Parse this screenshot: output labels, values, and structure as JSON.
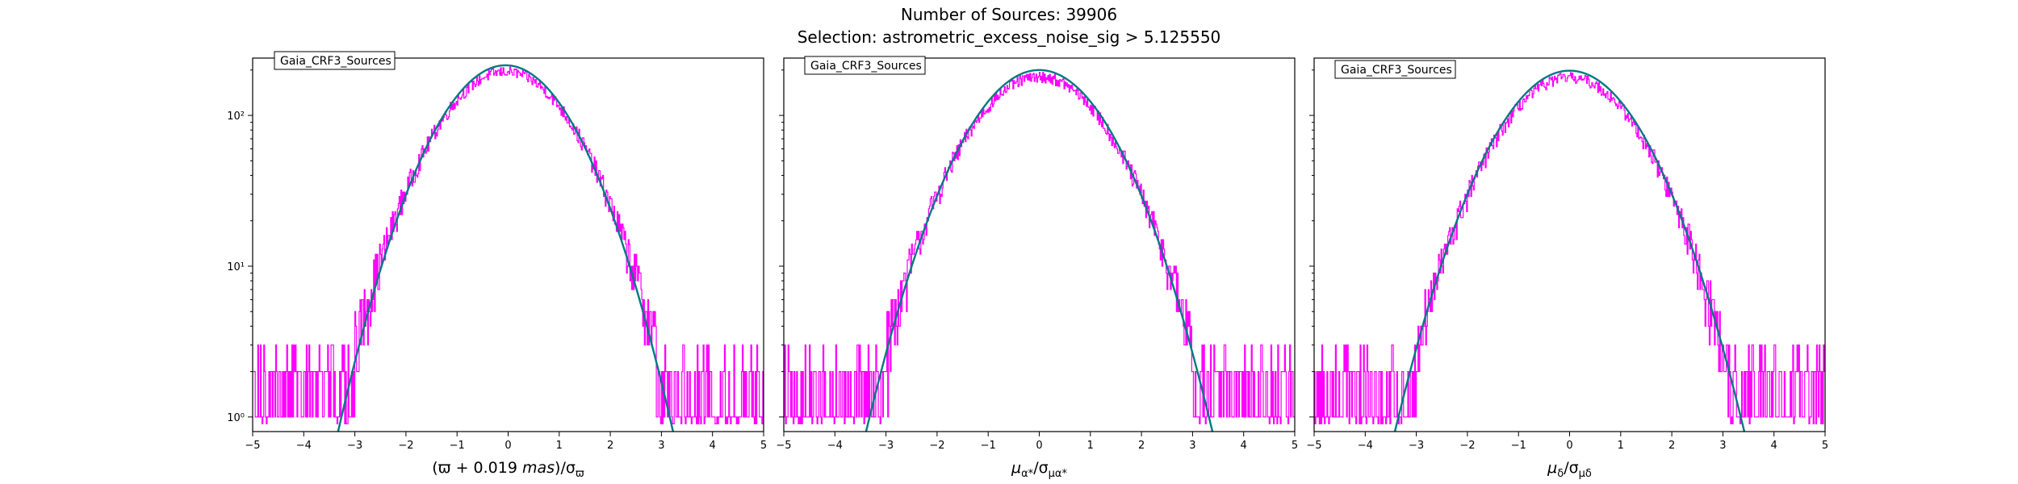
{
  "figure": {
    "title_line1": "Number of Sources: 39906",
    "title_line2": "Selection: astrometric_excess_noise_sig > 5.125550"
  },
  "colors": {
    "histogram": "#ff00ff",
    "gaussian": "#007a82",
    "axes": "#000000",
    "background": "#ffffff"
  },
  "chart_data": [
    {
      "type": "histogram",
      "panel": "parallax",
      "legend": "Gaia_CRF3_Sources",
      "xlabel": "(ϖ + 0.019 mas)/σ_ϖ",
      "xlabel_parts": [
        "(ϖ + 0.019 ",
        "mas",
        ")/σ",
        "ϖ"
      ],
      "xlim": [
        -5,
        5
      ],
      "ylim": [
        0.8,
        240
      ],
      "yscale": "log",
      "xticks": [
        -5,
        -4,
        -3,
        -2,
        -1,
        0,
        1,
        2,
        3,
        4,
        5
      ],
      "yticks": [
        {
          "value": 1,
          "label": "10⁰"
        },
        {
          "value": 10,
          "label": "10¹"
        },
        {
          "value": 100,
          "label": "10²"
        }
      ],
      "hist_peak": 195,
      "hist_center": -0.05,
      "hist_sigma": 1.02,
      "hist_tail_floor": [
        1,
        2
      ],
      "gaussian": {
        "amplitude": 215,
        "mean": -0.05,
        "sigma": 0.98
      }
    },
    {
      "type": "histogram",
      "panel": "pmra",
      "legend": "Gaia_CRF3_Sources",
      "xlabel": "μ_α*/σ_μα*",
      "xlabel_parts": [
        "μ",
        "α*",
        "/σ",
        "μα*"
      ],
      "xlim": [
        -5,
        5
      ],
      "ylim": [
        0.8,
        240
      ],
      "yscale": "log",
      "xticks": [
        -5,
        -4,
        -3,
        -2,
        -1,
        0,
        1,
        2,
        3,
        4,
        5
      ],
      "yticks": [
        {
          "value": 1,
          "label": ""
        },
        {
          "value": 10,
          "label": ""
        },
        {
          "value": 100,
          "label": ""
        }
      ],
      "hist_peak": 180,
      "hist_center": 0.0,
      "hist_sigma": 1.05,
      "hist_tail_floor": [
        1,
        2
      ],
      "gaussian": {
        "amplitude": 200,
        "mean": 0.0,
        "sigma": 1.02
      }
    },
    {
      "type": "histogram",
      "panel": "pmdec",
      "legend": "Gaia_CRF3_Sources",
      "xlabel": "μ_δ/σ_μδ",
      "xlabel_parts": [
        "μ",
        "δ",
        "/σ",
        "μδ"
      ],
      "xlim": [
        -5,
        5
      ],
      "ylim": [
        0.8,
        240
      ],
      "yscale": "log",
      "xticks": [
        -5,
        -4,
        -3,
        -2,
        -1,
        0,
        1,
        2,
        3,
        4,
        5
      ],
      "yticks": [
        {
          "value": 1,
          "label": ""
        },
        {
          "value": 10,
          "label": ""
        },
        {
          "value": 100,
          "label": ""
        }
      ],
      "hist_peak": 178,
      "hist_center": 0.0,
      "hist_sigma": 1.05,
      "hist_tail_floor": [
        1,
        2
      ],
      "gaussian": {
        "amplitude": 198,
        "mean": 0.0,
        "sigma": 1.03
      }
    }
  ]
}
